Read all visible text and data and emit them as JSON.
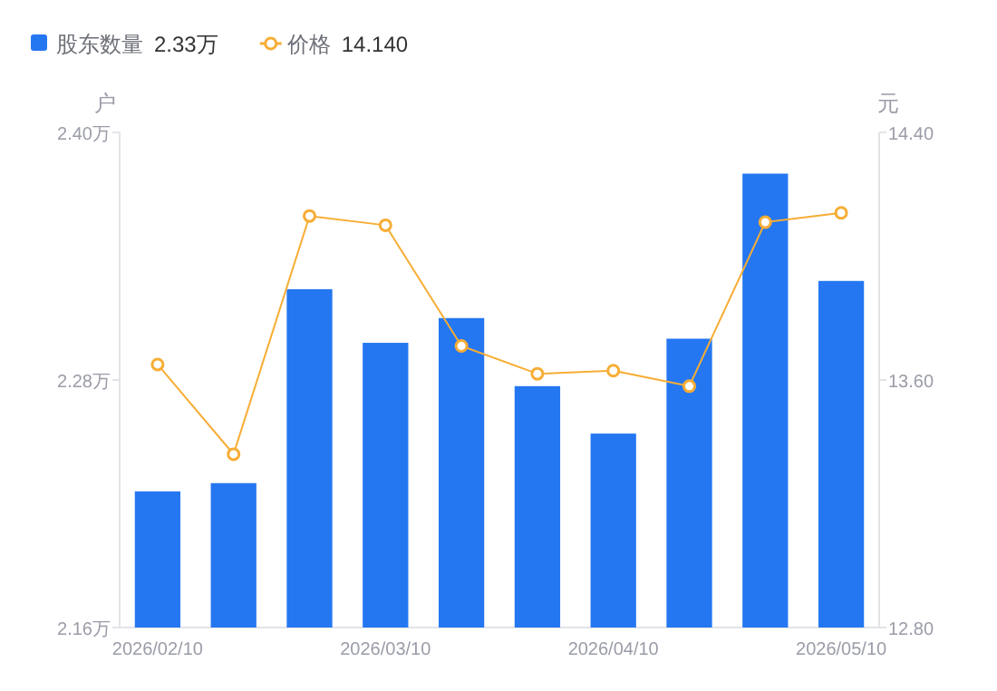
{
  "chart_data": {
    "type": "bar",
    "categories": [
      "2026/02/10",
      null,
      null,
      "2026/03/10",
      null,
      null,
      "2026/04/10",
      null,
      null,
      "2026/05/10"
    ],
    "series": [
      {
        "name": "股东数量",
        "color": "#2577f1",
        "values": [
          2.226,
          2.23,
          2.324,
          2.298,
          2.31,
          2.277,
          2.254,
          2.3,
          2.38,
          2.328
        ]
      },
      {
        "name": "价格",
        "type": "line",
        "axis": "y2",
        "color": "#f7ad35",
        "marker": "circle",
        "values": [
          13.65,
          13.36,
          14.13,
          14.1,
          13.71,
          13.62,
          13.63,
          13.58,
          14.11,
          14.14
        ]
      }
    ],
    "annotations": [
      "2.33万",
      "14.140"
    ],
    "ylabel": "户",
    "y2label": "元",
    "ylim": [
      2.16,
      2.4
    ],
    "yticks": [
      {
        "value": 2.16,
        "label": "2.16万"
      },
      {
        "value": 2.28,
        "label": "2.28万"
      },
      {
        "value": 2.4,
        "label": "2.40万"
      }
    ],
    "y2lim": [
      12.8,
      14.4
    ],
    "y2ticks": [
      {
        "value": 12.8,
        "label": "12.80"
      },
      {
        "value": 13.6,
        "label": "13.60"
      },
      {
        "value": 14.4,
        "label": "14.40"
      }
    ],
    "legend": "top left"
  }
}
